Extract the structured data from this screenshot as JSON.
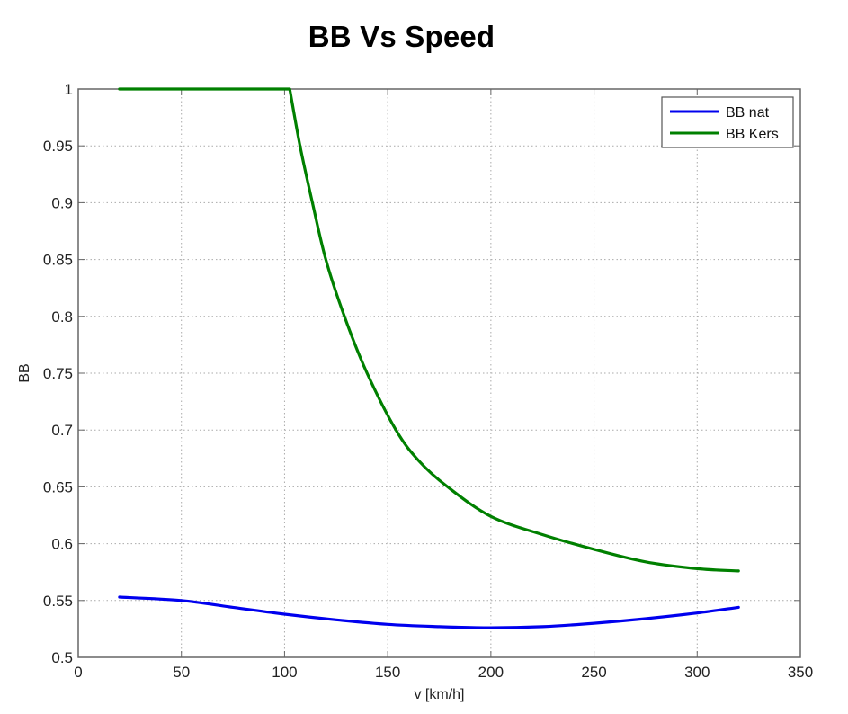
{
  "chart_data": {
    "type": "line",
    "title": "BB Vs Speed",
    "xlabel": "v [km/h]",
    "ylabel": "BB",
    "xlim": [
      0,
      350
    ],
    "ylim": [
      0.5,
      1
    ],
    "xticks": [
      0,
      50,
      100,
      150,
      200,
      250,
      300,
      350
    ],
    "xtick_labels": [
      "0",
      "50",
      "100",
      "150",
      "200",
      "250",
      "300",
      "350"
    ],
    "yticks": [
      0.5,
      0.55,
      0.6,
      0.65,
      0.7,
      0.75,
      0.8,
      0.85,
      0.9,
      0.95,
      1
    ],
    "ytick_labels": [
      "0.5",
      "0.55",
      "0.6",
      "0.65",
      "0.7",
      "0.75",
      "0.8",
      "0.85",
      "0.9",
      "0.95",
      "1"
    ],
    "grid": true,
    "legend_position": "upper right",
    "series": [
      {
        "name": "BB nat",
        "color": "#0000ee",
        "x": [
          20,
          50,
          75,
          100,
          125,
          150,
          175,
          200,
          225,
          250,
          275,
          300,
          320
        ],
        "y": [
          0.553,
          0.55,
          0.544,
          0.538,
          0.533,
          0.529,
          0.527,
          0.526,
          0.527,
          0.53,
          0.534,
          0.539,
          0.544
        ]
      },
      {
        "name": "BB Kers",
        "color": "#008000",
        "x": [
          20,
          50,
          100,
          102.5,
          107.5,
          113.5,
          120,
          129,
          140,
          154,
          165,
          179,
          200,
          225,
          250,
          275,
          300,
          320
        ],
        "y": [
          1.0,
          1.0,
          1.0,
          1.0,
          0.95,
          0.9,
          0.85,
          0.8,
          0.75,
          0.7,
          0.673,
          0.65,
          0.624,
          0.608,
          0.595,
          0.584,
          0.578,
          0.576
        ]
      }
    ]
  },
  "legend": {
    "items": [
      {
        "label": "BB nat",
        "color": "#0000ee"
      },
      {
        "label": "BB Kers",
        "color": "#008000"
      }
    ]
  }
}
